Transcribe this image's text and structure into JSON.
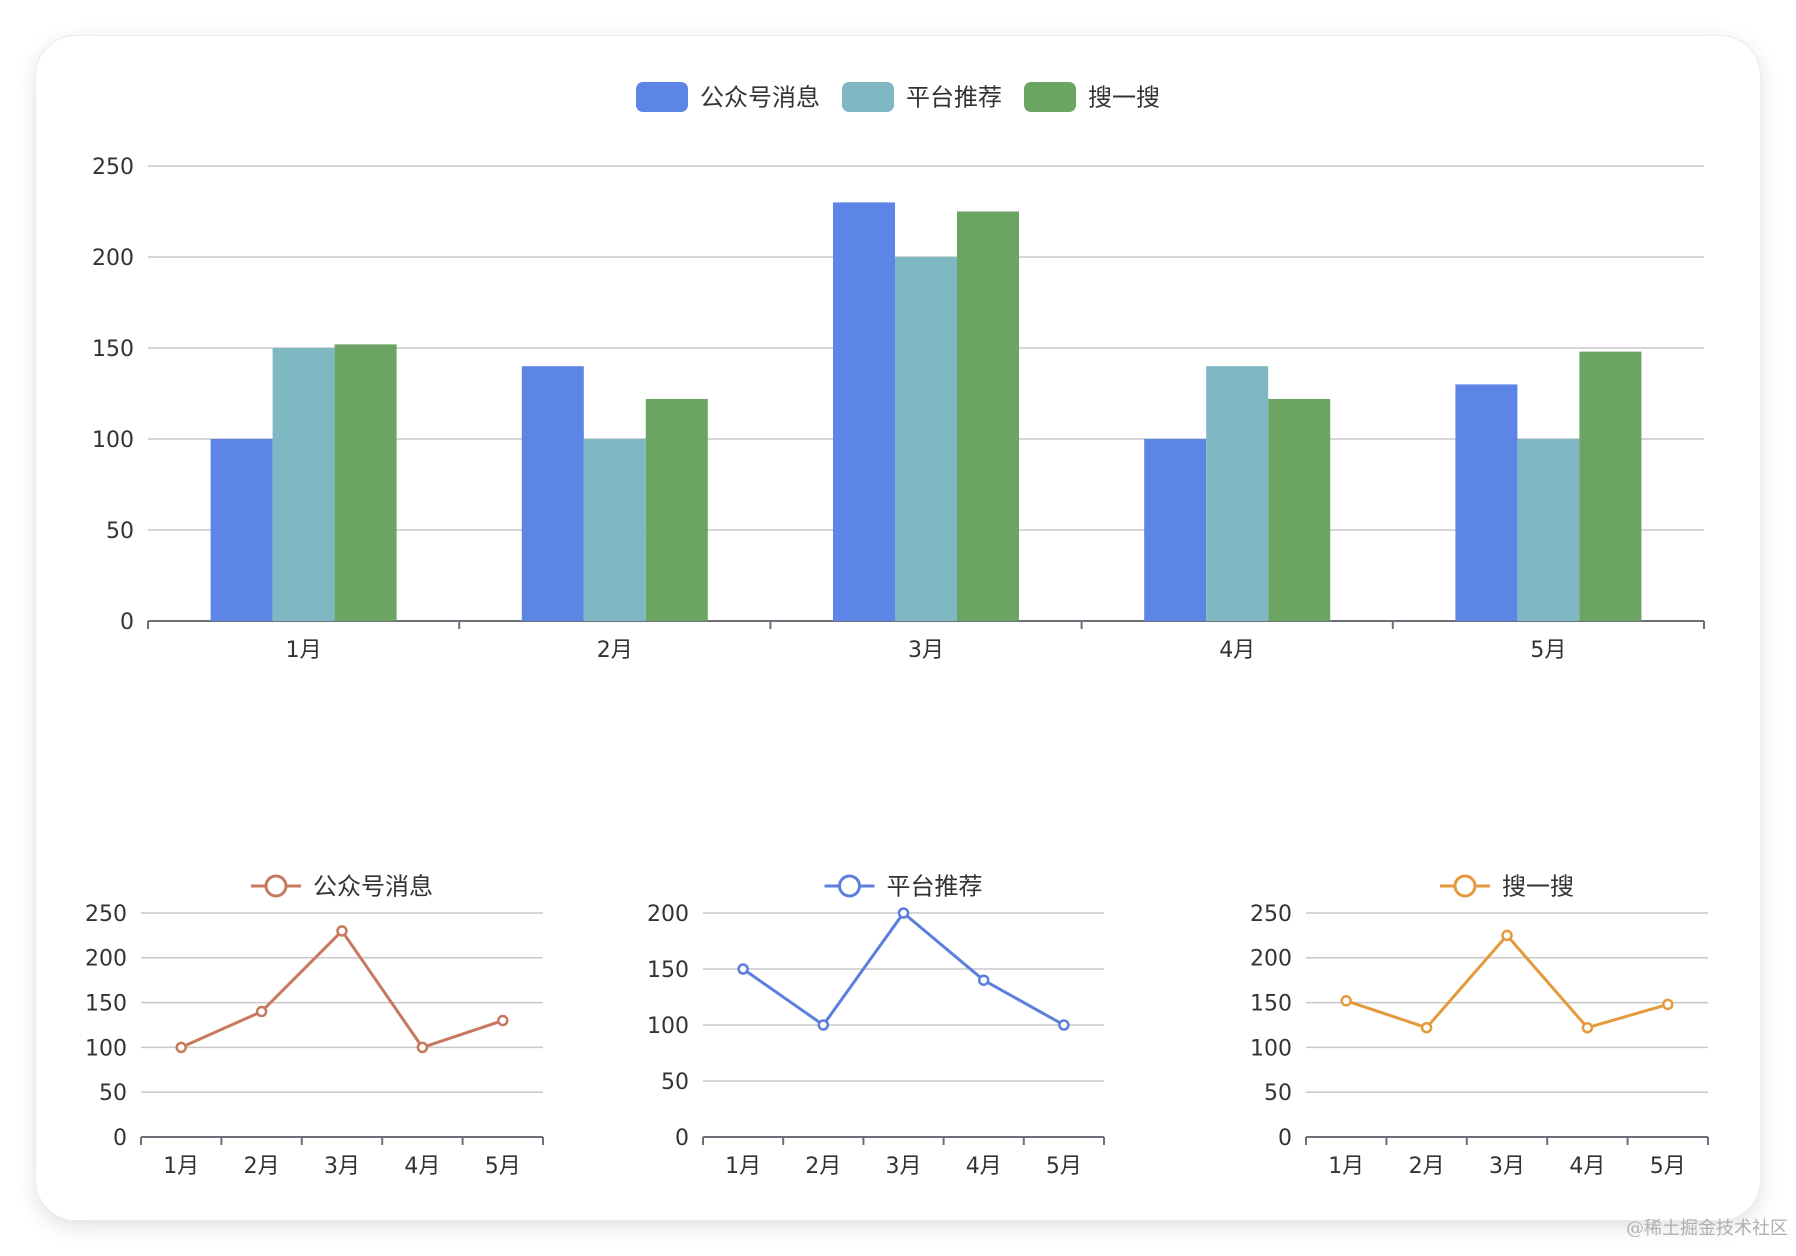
{
  "watermark": "@稀土掘金技术社区",
  "colors": {
    "axis": "#6e7079",
    "grid": "#c8c8c8",
    "text": "#333333"
  },
  "chart_data": [
    {
      "type": "bar",
      "categories": [
        "1月",
        "2月",
        "3月",
        "4月",
        "5月"
      ],
      "series": [
        {
          "name": "公众号消息",
          "values": [
            100,
            140,
            230,
            100,
            130
          ],
          "color": "#5d85e6"
        },
        {
          "name": "平台推荐",
          "values": [
            150,
            100,
            200,
            140,
            100
          ],
          "color": "#7fb8c2"
        },
        {
          "name": "搜一搜",
          "values": [
            152,
            122,
            225,
            122,
            148
          ],
          "color": "#6ca464"
        }
      ],
      "yticks": [
        0,
        50,
        100,
        150,
        200,
        250
      ],
      "ylim": [
        0,
        250
      ],
      "legend": "top-center",
      "grid": true
    },
    {
      "type": "line",
      "categories": [
        "1月",
        "2月",
        "3月",
        "4月",
        "5月"
      ],
      "series": [
        {
          "name": "公众号消息",
          "values": [
            100,
            140,
            230,
            100,
            130
          ],
          "color": "#c7795d"
        }
      ],
      "yticks": [
        0,
        50,
        100,
        150,
        200,
        250
      ],
      "ylim": [
        0,
        250
      ],
      "legend": "top-center",
      "grid": true
    },
    {
      "type": "line",
      "categories": [
        "1月",
        "2月",
        "3月",
        "4月",
        "5月"
      ],
      "series": [
        {
          "name": "平台推荐",
          "values": [
            150,
            100,
            200,
            140,
            100
          ],
          "color": "#5b7fdc"
        }
      ],
      "yticks": [
        0,
        50,
        100,
        150,
        200
      ],
      "ylim": [
        0,
        200
      ],
      "legend": "top-center",
      "grid": true
    },
    {
      "type": "line",
      "categories": [
        "1月",
        "2月",
        "3月",
        "4月",
        "5月"
      ],
      "series": [
        {
          "name": "搜一搜",
          "values": [
            152,
            122,
            225,
            122,
            148
          ],
          "color": "#e49a3c"
        }
      ],
      "yticks": [
        0,
        50,
        100,
        150,
        200,
        250
      ],
      "ylim": [
        0,
        250
      ],
      "legend": "top-center",
      "grid": true
    }
  ]
}
